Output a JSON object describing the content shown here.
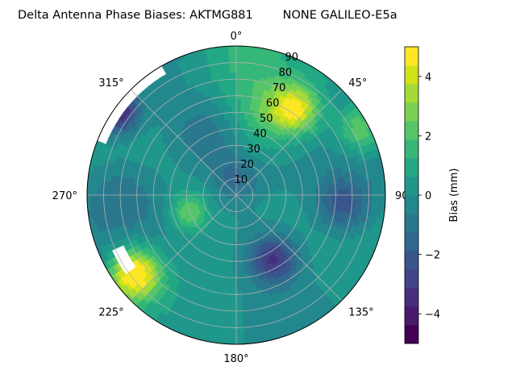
{
  "chart_data": {
    "type": "heatmap",
    "projection": "polar",
    "title": "Delta Antenna Phase Biases: AKTMG881        NONE GALILEO-E5a",
    "angle_labels": [
      {
        "deg": 0,
        "label": "0°"
      },
      {
        "deg": 45,
        "label": "45°"
      },
      {
        "deg": 90,
        "label": "90"
      },
      {
        "deg": 135,
        "label": "135°"
      },
      {
        "deg": 180,
        "label": "180°"
      },
      {
        "deg": 225,
        "label": "225°"
      },
      {
        "deg": 270,
        "label": "270°"
      },
      {
        "deg": 315,
        "label": "315°"
      }
    ],
    "radial_ticks": [
      10,
      20,
      30,
      40,
      50,
      60,
      70,
      80,
      90
    ],
    "radial_max": 90,
    "angular_direction": "clockwise",
    "zero_location": "top",
    "grid": true,
    "colorbar": {
      "label": "Bias (mm)",
      "ticks": [
        -4,
        -2,
        0,
        2,
        4
      ],
      "tick_labels": [
        "−4",
        "−2",
        "0",
        "2",
        "4"
      ],
      "range": [
        -5,
        5
      ],
      "levels": [
        -5,
        -4.375,
        -3.75,
        -3.125,
        -2.5,
        -1.875,
        -1.25,
        -0.625,
        0,
        0.625,
        1.25,
        1.875,
        2.5,
        3.125,
        3.75,
        4.375,
        5
      ],
      "colors": [
        "#440154",
        "#481a6c",
        "#472f7d",
        "#414487",
        "#39568c",
        "#31688e",
        "#2a788e",
        "#23888e",
        "#1f988b",
        "#22a884",
        "#35b779",
        "#54c568",
        "#7ad151",
        "#a5db36",
        "#d2e21b",
        "#fde725"
      ]
    },
    "bias_features": [
      {
        "az": 0,
        "zen": 88,
        "bias": 1.3,
        "spread": 22
      },
      {
        "az": 20,
        "zen": 55,
        "bias": 1.6,
        "spread": 14
      },
      {
        "az": 35,
        "zen": 63,
        "bias": 3.8,
        "spread": 10
      },
      {
        "az": 62,
        "zen": 85,
        "bias": 2.6,
        "spread": 10
      },
      {
        "az": 95,
        "zen": 65,
        "bias": -2.4,
        "spread": 12
      },
      {
        "az": 150,
        "zen": 45,
        "bias": -3.2,
        "spread": 10
      },
      {
        "az": 232,
        "zen": 78,
        "bias": 5.6,
        "spread": 11
      },
      {
        "az": 250,
        "zen": 30,
        "bias": 2.6,
        "spread": 8
      },
      {
        "az": 270,
        "zen": 70,
        "bias": -1.2,
        "spread": 16
      },
      {
        "az": 330,
        "zen": 40,
        "bias": -1.0,
        "spread": 14
      },
      {
        "az": 305,
        "zen": 88,
        "bias": -4.6,
        "spread": 9
      },
      {
        "az": 0,
        "zen": 10,
        "bias": -1.5,
        "spread": 10
      }
    ],
    "missing_regions": [
      {
        "az_min": 290,
        "az_max": 330,
        "zen_min": 85
      },
      {
        "az_min": 235,
        "az_max": 245,
        "zen_min": 74,
        "zen_max": 82
      }
    ]
  }
}
